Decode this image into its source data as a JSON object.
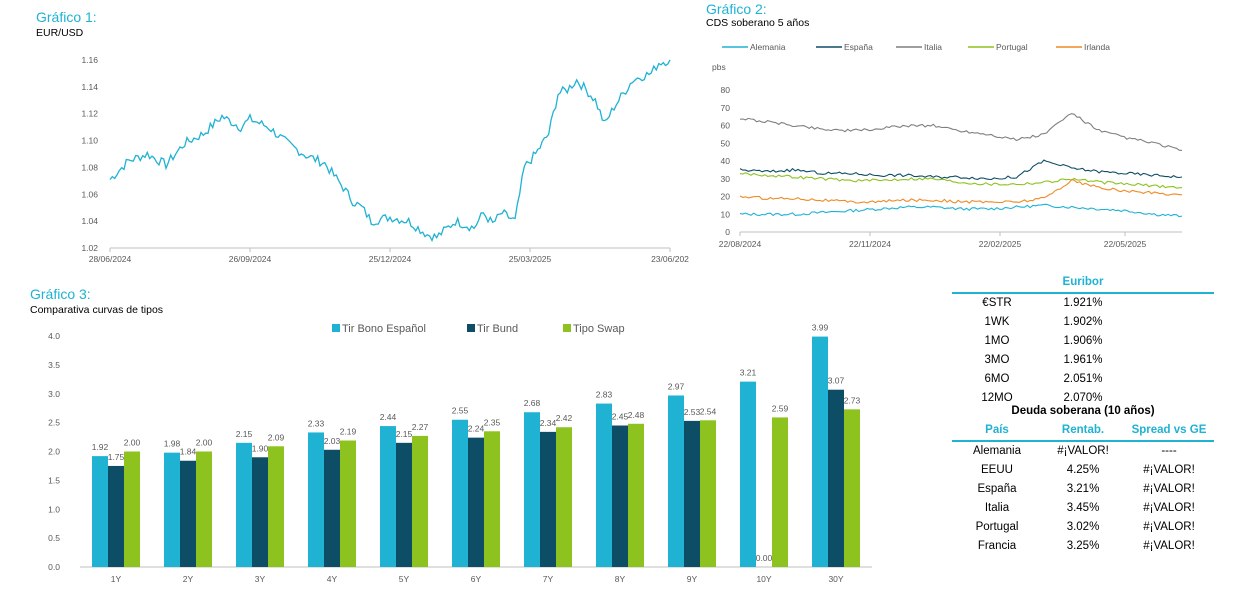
{
  "chart1": {
    "label": "Gráfico 1:",
    "title": "EUR/USD",
    "color": "#1FB2D3",
    "ylim": [
      1.02,
      1.16
    ],
    "yticks": [
      "1.02",
      "1.04",
      "1.06",
      "1.08",
      "1.10",
      "1.12",
      "1.14",
      "1.16"
    ],
    "xticks": [
      "28/06/2024",
      "26/09/2024",
      "25/12/2024",
      "25/03/2025",
      "23/06/202"
    ],
    "anchors": [
      [
        0,
        1.071
      ],
      [
        10,
        1.085
      ],
      [
        20,
        1.09
      ],
      [
        30,
        1.082
      ],
      [
        40,
        1.098
      ],
      [
        50,
        1.105
      ],
      [
        60,
        1.118
      ],
      [
        70,
        1.11
      ],
      [
        75,
        1.116
      ],
      [
        85,
        1.11
      ],
      [
        95,
        1.098
      ],
      [
        105,
        1.089
      ],
      [
        115,
        1.083
      ],
      [
        125,
        1.065
      ],
      [
        130,
        1.055
      ],
      [
        135,
        1.05
      ],
      [
        140,
        1.04
      ],
      [
        150,
        1.043
      ],
      [
        160,
        1.04
      ],
      [
        170,
        1.03
      ],
      [
        175,
        1.028
      ],
      [
        185,
        1.04
      ],
      [
        195,
        1.035
      ],
      [
        200,
        1.046
      ],
      [
        205,
        1.038
      ],
      [
        210,
        1.046
      ],
      [
        217,
        1.04
      ],
      [
        222,
        1.08
      ],
      [
        228,
        1.09
      ],
      [
        235,
        1.105
      ],
      [
        240,
        1.135
      ],
      [
        245,
        1.138
      ],
      [
        250,
        1.145
      ],
      [
        255,
        1.138
      ],
      [
        260,
        1.13
      ],
      [
        265,
        1.112
      ],
      [
        270,
        1.125
      ],
      [
        275,
        1.135
      ],
      [
        280,
        1.145
      ],
      [
        285,
        1.148
      ],
      [
        290,
        1.15
      ],
      [
        294,
        1.158
      ],
      [
        300,
        1.16
      ]
    ],
    "x_end": 300
  },
  "chart2": {
    "label": "Gráfico 2:",
    "title": "CDS soberano 5 años",
    "unit": "pbs",
    "ylim": [
      0,
      80
    ],
    "yticks": [
      "0",
      "10",
      "20",
      "30",
      "40",
      "50",
      "60",
      "70",
      "80"
    ],
    "xticks": [
      "22/08/2024",
      "22/11/2024",
      "22/02/2025",
      "22/05/2025"
    ],
    "series": [
      {
        "name": "Alemania",
        "color": "#1FB2D3",
        "values": [
          10,
          10,
          10,
          11,
          12,
          13,
          14,
          14,
          13,
          13,
          14,
          15,
          14,
          13,
          12,
          10,
          9
        ]
      },
      {
        "name": "España",
        "color": "#0E4D66",
        "values": [
          35,
          34,
          35,
          33,
          33,
          32,
          32,
          31,
          31,
          30,
          31,
          40,
          36,
          34,
          33,
          32,
          31
        ]
      },
      {
        "name": "Italia",
        "color": "#7F7F7F",
        "values": [
          64,
          62,
          60,
          58,
          57,
          58,
          60,
          60,
          57,
          55,
          52,
          55,
          67,
          57,
          53,
          50,
          46
        ]
      },
      {
        "name": "Portugal",
        "color": "#8DC21F",
        "values": [
          33,
          32,
          31,
          30,
          29,
          29,
          30,
          30,
          28,
          27,
          27,
          28,
          30,
          28,
          27,
          26,
          25
        ]
      },
      {
        "name": "Irlanda",
        "color": "#F08A24",
        "values": [
          20,
          19,
          19,
          18,
          17,
          17,
          18,
          18,
          17,
          17,
          17,
          19,
          29,
          25,
          23,
          22,
          21
        ]
      }
    ]
  },
  "chart3": {
    "label": "Gráfico 3:",
    "title": "Comparativa curvas de tipos",
    "ylim": [
      0,
      4
    ],
    "yticks": [
      "0.0",
      "0.5",
      "1.0",
      "1.5",
      "2.0",
      "2.5",
      "3.0",
      "3.5",
      "4.0"
    ],
    "categories": [
      "1Y",
      "2Y",
      "3Y",
      "4Y",
      "5Y",
      "6Y",
      "7Y",
      "8Y",
      "9Y",
      "10Y",
      "30Y"
    ],
    "series": [
      {
        "name": "Tir Bono Español",
        "color": "#1FB2D3",
        "values": [
          1.92,
          1.98,
          2.15,
          2.33,
          2.44,
          2.55,
          2.68,
          2.83,
          2.97,
          3.21,
          3.99
        ],
        "labels": [
          "1.92",
          "1.98",
          "2.15",
          "2.33",
          "2.44",
          "2.55",
          "2.68",
          "2.83",
          "2.97",
          "3.21",
          "3.99"
        ]
      },
      {
        "name": "Tir Bund",
        "color": "#0E4D66",
        "values": [
          1.75,
          1.84,
          1.9,
          2.03,
          2.15,
          2.24,
          2.34,
          2.45,
          2.53,
          0.0,
          3.07
        ],
        "labels": [
          "1.75",
          "1.84",
          "1.90",
          "2.03",
          "2.15",
          "2.24",
          "2.34",
          "2.45",
          "2.53",
          "0.00",
          "3.07"
        ]
      },
      {
        "name": "Tipo Swap",
        "color": "#8DC21F",
        "values": [
          2.0,
          2.0,
          2.09,
          2.19,
          2.27,
          2.35,
          2.42,
          2.48,
          2.54,
          2.59,
          2.73
        ],
        "labels": [
          "2.00",
          "2.00",
          "2.09",
          "2.19",
          "2.27",
          "2.35",
          "2.42",
          "2.48",
          "2.54",
          "2.59",
          "2.73"
        ]
      }
    ]
  },
  "euribor": {
    "header": "Euribor",
    "rows": [
      {
        "label": "€STR",
        "value": "1.921%"
      },
      {
        "label": "1WK",
        "value": "1.902%"
      },
      {
        "label": "1MO",
        "value": "1.906%"
      },
      {
        "label": "3MO",
        "value": "1.961%"
      },
      {
        "label": "6MO",
        "value": "2.051%"
      },
      {
        "label": "12MO",
        "value": "2.070%"
      }
    ]
  },
  "deuda": {
    "title": "Deuda soberana (10 años)",
    "headers": [
      "País",
      "Rentab.",
      "Spread vs GE"
    ],
    "rows": [
      {
        "country": "Alemania",
        "yield": "#¡VALOR!",
        "spread": "----"
      },
      {
        "country": "EEUU",
        "yield": "4.25%",
        "spread": "#¡VALOR!"
      },
      {
        "country": "España",
        "yield": "3.21%",
        "spread": "#¡VALOR!"
      },
      {
        "country": "Italia",
        "yield": "3.45%",
        "spread": "#¡VALOR!"
      },
      {
        "country": "Portugal",
        "yield": "3.02%",
        "spread": "#¡VALOR!"
      },
      {
        "country": "Francia",
        "yield": "3.25%",
        "spread": "#¡VALOR!"
      }
    ]
  }
}
